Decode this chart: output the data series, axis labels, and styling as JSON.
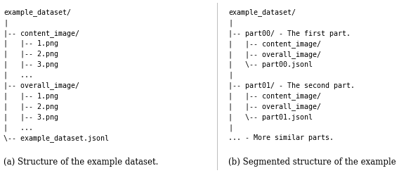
{
  "left_lines": [
    "example_dataset/",
    "|",
    "|-- content_image/",
    "|   |-- 1.png",
    "|   |-- 2.png",
    "|   |-- 3.png",
    "|   ...",
    "|-- overall_image/",
    "|   |-- 1.png",
    "|   |-- 2.png",
    "|   |-- 3.png",
    "|   ...",
    "\\-- example_dataset.jsonl"
  ],
  "right_lines": [
    "example_dataset/",
    "|",
    "|-- part00/ - The first part.",
    "|   |-- content_image/",
    "|   |-- overall_image/",
    "|   \\-- part00.jsonl",
    "|",
    "|-- part01/ - The second part.",
    "|   |-- content_image/",
    "|   |-- overall_image/",
    "|   \\-- part01.jsonl",
    "|",
    "... - More similar parts."
  ],
  "left_caption": "(a) Structure of the example dataset.",
  "right_caption": "(b) Segmented structure of the example",
  "bg_color": "#ffffff",
  "text_color": "#000000",
  "mono_fontsize": 7.2,
  "caption_fontsize": 8.5
}
